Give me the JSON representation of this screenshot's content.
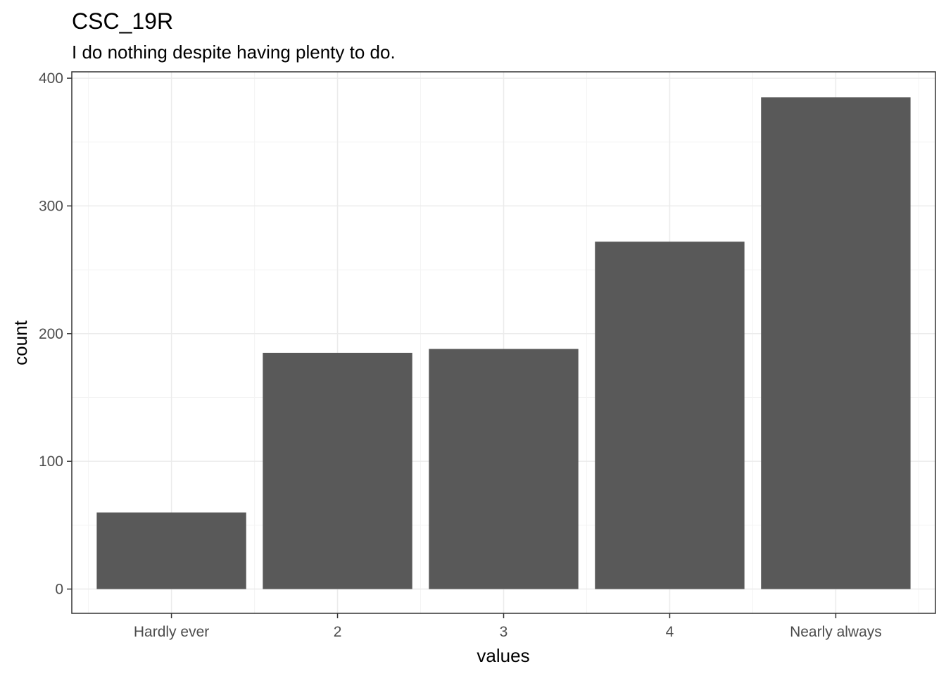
{
  "chart_data": {
    "type": "bar",
    "title": "CSC_19R",
    "subtitle": "I do nothing despite having plenty to do.",
    "xlabel": "values",
    "ylabel": "count",
    "categories": [
      "Hardly ever",
      "2",
      "3",
      "4",
      "Nearly always"
    ],
    "values": [
      60,
      185,
      188,
      272,
      385
    ],
    "ylim": [
      -19,
      405
    ],
    "yticks": [
      0,
      100,
      200,
      300,
      400
    ],
    "grid": true,
    "legend": "none",
    "colors": {
      "bar": "#595959",
      "grid_major": "#ebebeb",
      "grid_minor": "#f4f4f4",
      "panel_border": "#333333",
      "tick_text": "#4d4d4d",
      "text": "#000000"
    }
  }
}
